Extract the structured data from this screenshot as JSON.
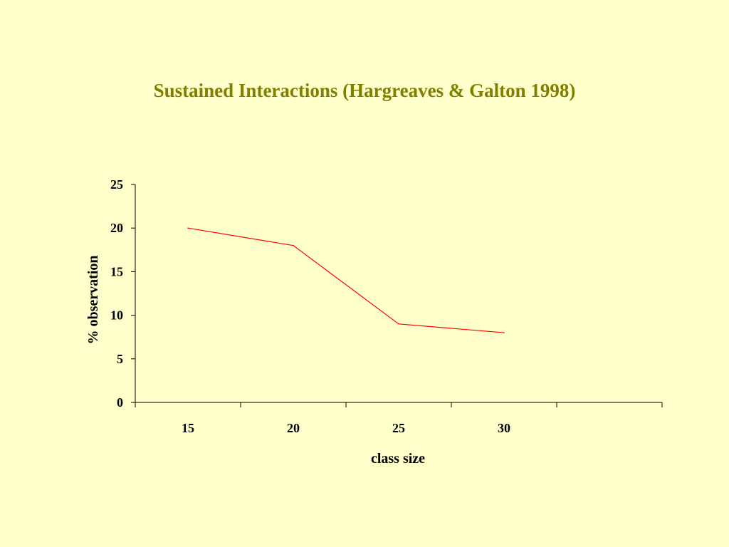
{
  "chart_data": {
    "type": "line",
    "title": "Sustained Interactions (Hargreaves & Galton 1998)",
    "xlabel": "class size",
    "ylabel": "% observation",
    "categories": [
      "15",
      "20",
      "25",
      "30"
    ],
    "series": [
      {
        "values": [
          20,
          18,
          9,
          8
        ]
      }
    ],
    "ylim": [
      0,
      25
    ],
    "yticks": [
      0,
      5,
      10,
      15,
      20,
      25
    ],
    "grid": false,
    "legend": "none",
    "line_color": "#FF0000",
    "title_color": "#808000",
    "background_color": "#FFFFCC"
  }
}
